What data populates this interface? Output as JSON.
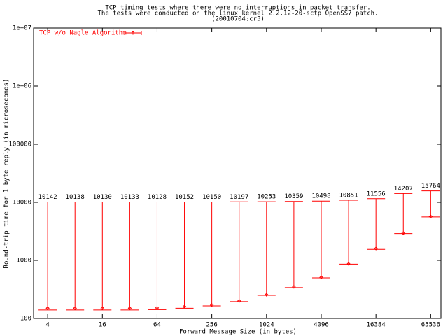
{
  "chart_data": {
    "type": "errorbar",
    "title": [
      "TCP timing tests where there were no interruptions in packet transfer.",
      "The tests were conducted on the linux kernel 2.2.12-20-sctp OpenSS7 patch.",
      "(20010704:cr3)"
    ],
    "x_label": "Forward Message Size (in bytes)",
    "y_label": "Round-trip time for 1 byte reply (in microseconds)",
    "log_x": 2,
    "log_y": 10,
    "legend": "top-left",
    "x": [
      4,
      8,
      16,
      32,
      64,
      128,
      256,
      512,
      1024,
      2048,
      4096,
      8192,
      16384,
      32768,
      65536
    ],
    "series": [
      {
        "name": "TCP w/o Nagle Algorithm",
        "color": "#ff0000",
        "values": [
          150,
          150,
          150,
          150,
          152,
          160,
          170,
          200,
          256,
          350,
          510,
          870,
          1600,
          2950,
          5700
        ],
        "min": [
          140,
          140,
          140,
          140,
          142,
          150,
          165,
          195,
          250,
          340,
          500,
          860,
          1550,
          2900,
          5600
        ],
        "max": [
          10142,
          10138,
          10130,
          10133,
          10128,
          10152,
          10150,
          10197,
          10253,
          10359,
          10498,
          10851,
          11556,
          14207,
          15764
        ]
      }
    ],
    "xlim": [
      2.8,
      85000
    ],
    "ylim": [
      100,
      10000000
    ],
    "xticks": [
      4,
      16,
      64,
      256,
      1024,
      4096,
      16384,
      65536
    ],
    "yticks": [
      100,
      1000,
      10000,
      100000,
      {
        "value": 1000000,
        "label": "1e+06"
      },
      {
        "value": 10000000,
        "label": "1e+07"
      }
    ]
  }
}
